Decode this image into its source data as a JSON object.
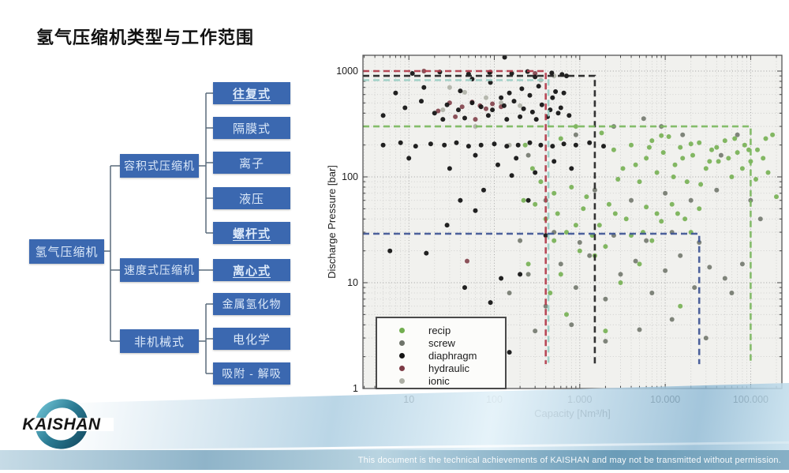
{
  "slide": {
    "title": "氢气压缩机类型与工作范围",
    "footer": "This document is the technical achievements of KAISHAN and may not be transmitted without permission.",
    "logo_text": "KAISHAN"
  },
  "tree": {
    "box_color": "#3b68b0",
    "text_color": "#dce9f9",
    "root": {
      "label": "氢气压缩机"
    },
    "branches": [
      {
        "label": "容积式压缩机",
        "children": [
          {
            "label": "往复式",
            "highlight": true
          },
          {
            "label": "隔膜式",
            "highlight": false
          },
          {
            "label": "离子",
            "highlight": false
          },
          {
            "label": "液压",
            "highlight": false
          },
          {
            "label": "螺杆式",
            "highlight": true
          }
        ]
      },
      {
        "label": "速度式压缩机",
        "children": [
          {
            "label": "离心式",
            "highlight": true
          }
        ]
      },
      {
        "label": "非机械式",
        "children": [
          {
            "label": "金属氢化物",
            "highlight": false
          },
          {
            "label": "电化学",
            "highlight": false
          },
          {
            "label": "吸附 - 解吸",
            "highlight": false
          }
        ]
      }
    ]
  },
  "chart_data": {
    "type": "scatter",
    "x_scale": "log",
    "y_scale": "log",
    "xlabel": "Capacity [Nm³/h]",
    "ylabel": "Discharge Pressure [bar]",
    "xlim": [
      2.9,
      232000
    ],
    "ylim": [
      1,
      1410
    ],
    "grid": true,
    "x_ticks": [
      {
        "v": 10,
        "label": "10"
      },
      {
        "v": 100,
        "label": "100"
      },
      {
        "v": 1000,
        "label": "1.000"
      },
      {
        "v": 10000,
        "label": "10.000"
      },
      {
        "v": 100000,
        "label": "100.000"
      }
    ],
    "y_ticks": [
      {
        "v": 1,
        "label": "1"
      },
      {
        "v": 10,
        "label": "10"
      },
      {
        "v": 100,
        "label": "100"
      },
      {
        "v": 1000,
        "label": "1000"
      }
    ],
    "legend": [
      "recip",
      "screw",
      "diaphragm",
      "hydraulic",
      "ionic"
    ],
    "legend_position": "lower-left",
    "ranges": [
      {
        "name": "ionic",
        "color": "#9ccfc6",
        "top": 820,
        "right": 430,
        "bottom": 1.7
      },
      {
        "name": "diaphragm",
        "color": "#222222",
        "top": 900,
        "right": 1500,
        "bottom": 1.7
      },
      {
        "name": "hydraulic",
        "color": "#b23c4b",
        "top": 1000,
        "right": 400,
        "bottom": 1.7
      },
      {
        "name": "recip",
        "color": "#7cb85f",
        "top": 300,
        "right": 100000,
        "bottom": 1.7
      },
      {
        "name": "screw",
        "color": "#3e5595",
        "top": 29,
        "right": 25000,
        "bottom": 1.7
      }
    ],
    "series": [
      {
        "name": "recip",
        "color": "#72ae4f",
        "points": [
          [
            2500,
            180
          ],
          [
            3200,
            120
          ],
          [
            4000,
            200
          ],
          [
            5000,
            90
          ],
          [
            6000,
            150
          ],
          [
            7000,
            220
          ],
          [
            8000,
            110
          ],
          [
            9500,
            170
          ],
          [
            11000,
            240
          ],
          [
            13000,
            130
          ],
          [
            15000,
            190
          ],
          [
            18000,
            90
          ],
          [
            21000,
            160
          ],
          [
            25000,
            210
          ],
          [
            30000,
            120
          ],
          [
            35000,
            180
          ],
          [
            42000,
            140
          ],
          [
            50000,
            220
          ],
          [
            60000,
            100
          ],
          [
            70000,
            170
          ],
          [
            85000,
            200
          ],
          [
            100000,
            140
          ],
          [
            120000,
            180
          ],
          [
            150000,
            230
          ],
          [
            2800,
            95
          ],
          [
            4500,
            130
          ],
          [
            6500,
            190
          ],
          [
            9000,
            245
          ],
          [
            12500,
            100
          ],
          [
            16000,
            150
          ],
          [
            20000,
            205
          ],
          [
            26000,
            85
          ],
          [
            33000,
            140
          ],
          [
            40000,
            190
          ],
          [
            55000,
            150
          ],
          [
            65000,
            230
          ],
          [
            80000,
            120
          ],
          [
            95000,
            180
          ],
          [
            115000,
            95
          ],
          [
            140000,
            150
          ],
          [
            180000,
            250
          ],
          [
            200000,
            65
          ],
          [
            160000,
            110
          ],
          [
            400,
            40
          ],
          [
            700,
            30
          ],
          [
            1100,
            50
          ],
          [
            1700,
            35
          ],
          [
            2600,
            45
          ],
          [
            4000,
            28
          ],
          [
            6000,
            52
          ],
          [
            9000,
            38
          ],
          [
            14000,
            45
          ],
          [
            20000,
            30
          ],
          [
            300,
            55
          ],
          [
            550,
            45
          ],
          [
            900,
            35
          ],
          [
            1400,
            28
          ],
          [
            2200,
            55
          ],
          [
            3500,
            40
          ],
          [
            5500,
            30
          ],
          [
            8000,
            45
          ],
          [
            12000,
            55
          ],
          [
            17000,
            40
          ],
          [
            25000,
            50
          ],
          [
            500,
            25
          ],
          [
            2000,
            22
          ],
          [
            7000,
            25
          ],
          [
            250,
            15
          ],
          [
            600,
            12
          ],
          [
            1500,
            18
          ],
          [
            3000,
            10
          ],
          [
            700,
            5
          ],
          [
            2000,
            3.5
          ],
          [
            15000,
            6
          ],
          [
            450,
            8
          ],
          [
            5000,
            15
          ],
          [
            1000,
            20
          ],
          [
            220,
            60
          ],
          [
            350,
            90
          ],
          [
            500,
            70
          ],
          [
            800,
            80
          ],
          [
            1200,
            65
          ],
          [
            280,
            120
          ],
          [
            230,
            200
          ],
          [
            600,
            230
          ],
          [
            1800,
            260
          ],
          [
            900,
            300
          ]
        ]
      },
      {
        "name": "screw",
        "color": "#6e746a",
        "points": [
          [
            150,
            8
          ],
          [
            250,
            12
          ],
          [
            400,
            6
          ],
          [
            600,
            15
          ],
          [
            900,
            9
          ],
          [
            1300,
            18
          ],
          [
            2000,
            7
          ],
          [
            3000,
            12
          ],
          [
            4500,
            16
          ],
          [
            7000,
            8
          ],
          [
            10000,
            13
          ],
          [
            15000,
            18
          ],
          [
            22000,
            9
          ],
          [
            33000,
            14
          ],
          [
            50000,
            11
          ],
          [
            200,
            25
          ],
          [
            500,
            30
          ],
          [
            1000,
            24
          ],
          [
            2500,
            28
          ],
          [
            6000,
            25
          ],
          [
            12000,
            30
          ],
          [
            25000,
            24
          ],
          [
            300,
            3.5
          ],
          [
            800,
            4
          ],
          [
            2000,
            2.8
          ],
          [
            5000,
            3.6
          ],
          [
            12000,
            4.5
          ],
          [
            30000,
            3
          ],
          [
            60000,
            8
          ],
          [
            80000,
            15
          ],
          [
            400,
            60
          ],
          [
            1500,
            75
          ],
          [
            4000,
            60
          ],
          [
            10000,
            70
          ],
          [
            20000,
            60
          ],
          [
            40000,
            75
          ],
          [
            250,
            160
          ],
          [
            900,
            250
          ],
          [
            2500,
            300
          ],
          [
            5600,
            355
          ],
          [
            9000,
            300
          ],
          [
            16000,
            250
          ],
          [
            45000,
            160
          ],
          [
            70000,
            250
          ],
          [
            100000,
            60
          ],
          [
            130000,
            40
          ]
        ]
      },
      {
        "name": "diaphragm",
        "color": "#151515",
        "points": [
          [
            11,
            950
          ],
          [
            23,
            980
          ],
          [
            50,
            940
          ],
          [
            88,
            970
          ],
          [
            160,
            950
          ],
          [
            245,
            990
          ],
          [
            470,
            960
          ],
          [
            620,
            930
          ],
          [
            132,
            1350
          ],
          [
            300,
            880
          ],
          [
            700,
            900
          ],
          [
            7,
            620
          ],
          [
            15,
            700
          ],
          [
            40,
            650
          ],
          [
            90,
            780
          ],
          [
            150,
            620
          ],
          [
            210,
            680
          ],
          [
            330,
            720
          ],
          [
            520,
            640
          ],
          [
            55,
            840
          ],
          [
            120,
            560
          ],
          [
            260,
            590
          ],
          [
            480,
            560
          ],
          [
            650,
            620
          ],
          [
            5,
            380
          ],
          [
            9,
            450
          ],
          [
            14,
            520
          ],
          [
            20,
            400
          ],
          [
            28,
            480
          ],
          [
            38,
            430
          ],
          [
            55,
            500
          ],
          [
            70,
            460
          ],
          [
            95,
            430
          ],
          [
            130,
            470
          ],
          [
            170,
            520
          ],
          [
            220,
            440
          ],
          [
            280,
            410
          ],
          [
            360,
            480
          ],
          [
            450,
            430
          ],
          [
            560,
            400
          ],
          [
            25,
            350
          ],
          [
            45,
            360
          ],
          [
            85,
            380
          ],
          [
            140,
            350
          ],
          [
            200,
            370
          ],
          [
            310,
            350
          ],
          [
            420,
            370
          ],
          [
            600,
            450
          ],
          [
            750,
            380
          ],
          [
            5,
            200
          ],
          [
            8,
            210
          ],
          [
            12,
            195
          ],
          [
            18,
            205
          ],
          [
            26,
            200
          ],
          [
            36,
            210
          ],
          [
            50,
            195
          ],
          [
            70,
            200
          ],
          [
            100,
            205
          ],
          [
            140,
            195
          ],
          [
            190,
            200
          ],
          [
            260,
            210
          ],
          [
            350,
            200
          ],
          [
            480,
            195
          ],
          [
            650,
            205
          ],
          [
            900,
            200
          ],
          [
            1300,
            210
          ],
          [
            1900,
            195
          ],
          [
            10,
            150
          ],
          [
            30,
            120
          ],
          [
            60,
            160
          ],
          [
            110,
            130
          ],
          [
            180,
            150
          ],
          [
            300,
            110
          ],
          [
            500,
            140
          ],
          [
            800,
            120
          ],
          [
            160,
            103
          ],
          [
            6,
            20
          ],
          [
            16,
            19
          ],
          [
            28,
            35
          ],
          [
            60,
            48
          ],
          [
            45,
            9
          ],
          [
            120,
            11
          ],
          [
            90,
            6.5
          ],
          [
            200,
            12
          ],
          [
            75,
            75
          ],
          [
            40,
            60
          ],
          [
            150,
            2.2
          ],
          [
            400,
            28
          ],
          [
            250,
            60
          ]
        ]
      },
      {
        "name": "hydraulic",
        "color": "#7d3b45",
        "points": [
          [
            22,
            420
          ],
          [
            30,
            500
          ],
          [
            42,
            460
          ],
          [
            55,
            510
          ],
          [
            68,
            470
          ],
          [
            80,
            440
          ],
          [
            95,
            490
          ],
          [
            120,
            460
          ],
          [
            35,
            370
          ],
          [
            60,
            350
          ],
          [
            15,
            1000
          ],
          [
            90,
            980
          ],
          [
            300,
            950
          ],
          [
            48,
            16
          ]
        ]
      },
      {
        "name": "ionic",
        "color": "#adafa5",
        "points": [
          [
            30,
            700
          ],
          [
            45,
            630
          ],
          [
            80,
            560
          ],
          [
            120,
            500
          ],
          [
            200,
            470
          ],
          [
            350,
            820
          ],
          [
            500,
            900
          ],
          [
            60,
            300
          ],
          [
            150,
            200
          ],
          [
            25,
            430
          ]
        ]
      }
    ]
  }
}
